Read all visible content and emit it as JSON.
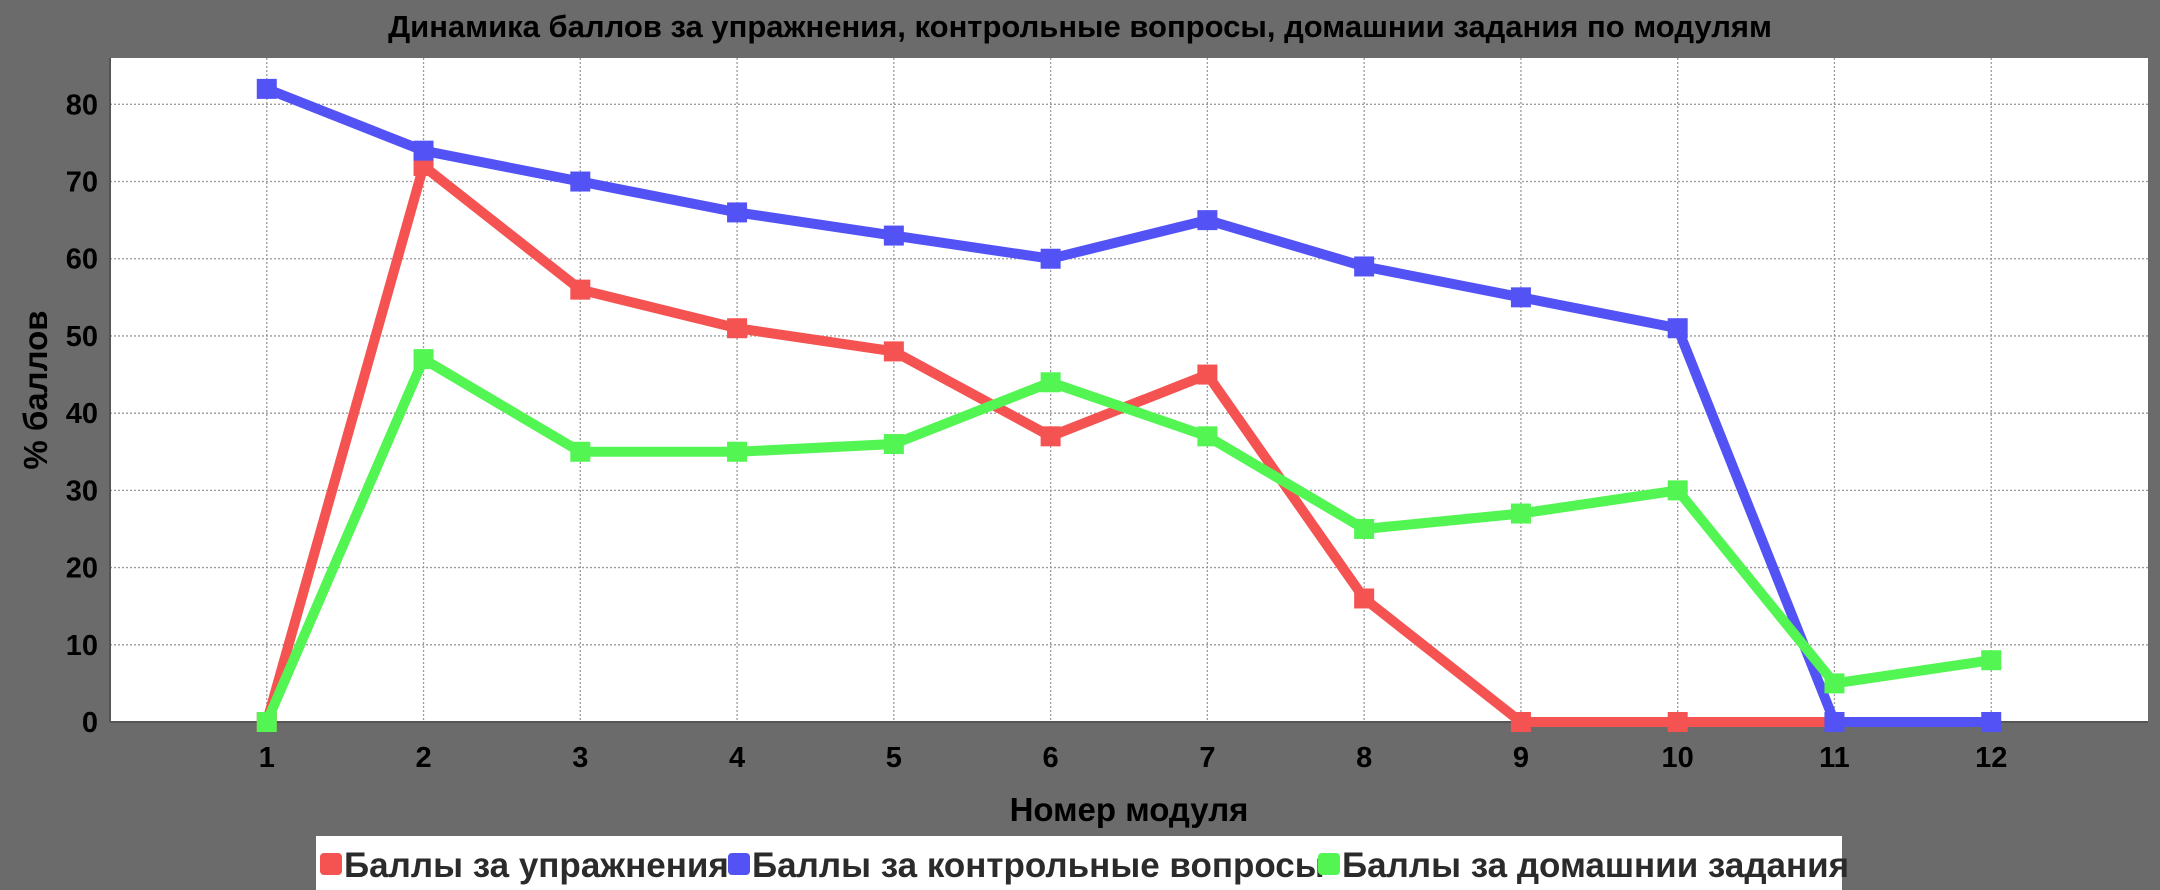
{
  "chart_data": {
    "type": "line",
    "title": "Динамика баллов за упражнения, контрольные вопросы, домашнии задания по модулям",
    "xlabel": "Номер модуля",
    "ylabel": "% баллов",
    "x": [
      1,
      2,
      3,
      4,
      5,
      6,
      7,
      8,
      9,
      10,
      11,
      12
    ],
    "xlim": [
      0,
      13
    ],
    "ylim": [
      0,
      86
    ],
    "yticks": [
      0,
      10,
      20,
      30,
      40,
      50,
      60,
      70,
      80
    ],
    "grid": true,
    "legend_position": "bottom",
    "series": [
      {
        "name": "Баллы за упражнения",
        "color": "#f55252",
        "values": [
          0,
          72,
          56,
          51,
          48,
          37,
          45,
          16,
          0,
          0,
          0,
          null
        ]
      },
      {
        "name": "Баллы за контрольные вопросы",
        "color": "#5252f5",
        "values": [
          82,
          74,
          70,
          66,
          63,
          60,
          65,
          59,
          55,
          51,
          0,
          0
        ]
      },
      {
        "name": "Баллы за домашнии задания",
        "color": "#52f552",
        "values": [
          0,
          47,
          35,
          35,
          36,
          44,
          37,
          25,
          27,
          30,
          5,
          8
        ]
      }
    ]
  }
}
